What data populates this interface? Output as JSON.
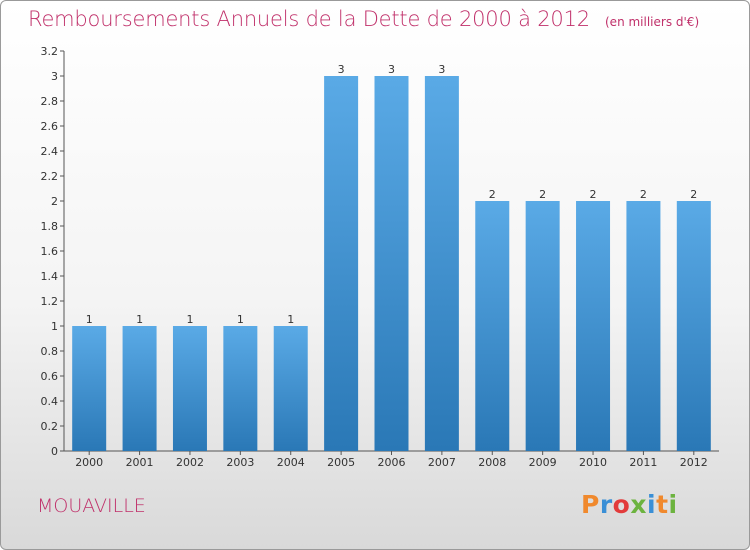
{
  "title": "Remboursements Annuels de la Dette de 2000 à 2012",
  "unit": "(en milliers d'€)",
  "commune": "MOUAVILLE",
  "logo": {
    "text": "Proxiti",
    "colors": [
      "#f0892d",
      "#3a8fd6",
      "#e23b3b",
      "#6cb33f",
      "#3a8fd6",
      "#f0892d",
      "#6cb33f"
    ]
  },
  "colors": {
    "bar_light": "#5aaae6",
    "bar_dark": "#2a78b6",
    "title": "#c0306a"
  },
  "chart_data": {
    "type": "bar",
    "categories": [
      "2000",
      "2001",
      "2002",
      "2003",
      "2004",
      "2005",
      "2006",
      "2007",
      "2008",
      "2009",
      "2010",
      "2011",
      "2012"
    ],
    "values": [
      1,
      1,
      1,
      1,
      1,
      3,
      3,
      3,
      2,
      2,
      2,
      2,
      2
    ],
    "data_labels": [
      "1",
      "1",
      "1",
      "1",
      "1",
      "3",
      "3",
      "3",
      "2",
      "2",
      "2",
      "2",
      "2"
    ],
    "ylim": [
      0,
      3.2
    ],
    "yticks": [
      0,
      0.2,
      0.4,
      0.6,
      0.8,
      1,
      1.2,
      1.4,
      1.6,
      1.8,
      2,
      2.2,
      2.4,
      2.6,
      2.8,
      3,
      3.2
    ],
    "ytick_labels": [
      "0",
      "0.2",
      "0.4",
      "0.6",
      "0.8",
      "1",
      "1.2",
      "1.4",
      "1.6",
      "1.8",
      "2",
      "2.2",
      "2.4",
      "2.6",
      "2.8",
      "3",
      "3.2"
    ],
    "grid": false,
    "legend": "none"
  }
}
